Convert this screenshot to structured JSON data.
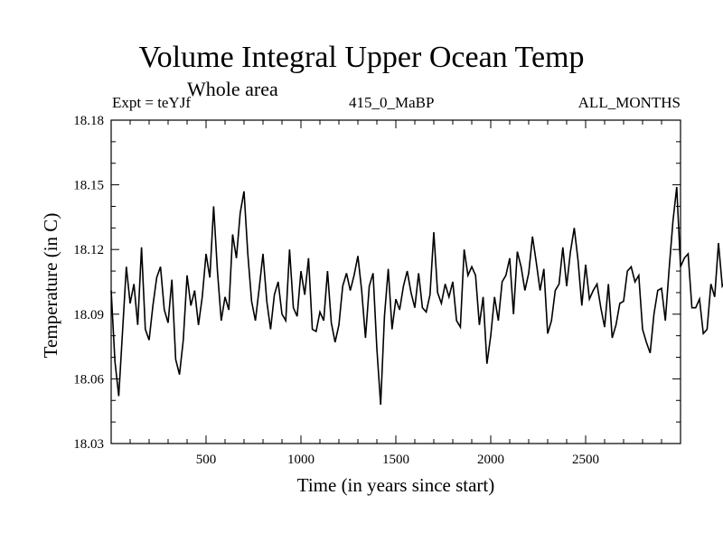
{
  "chart_data": {
    "type": "line",
    "title": "Volume Integral Upper Ocean Temp",
    "subtitle": "Whole area",
    "experiment_label": "Expt = teYJf",
    "period_label": "415_0_MaBP",
    "season_label": "ALL_MONTHS",
    "xlabel": "Time (in years since start)",
    "ylabel": "Temperature (in C)",
    "xlim": [
      0,
      3000
    ],
    "ylim": [
      18.03,
      18.18
    ],
    "x_ticks": [
      500,
      1000,
      1500,
      2000,
      2500
    ],
    "y_ticks": [
      18.03,
      18.06,
      18.09,
      18.12,
      18.15,
      18.18
    ],
    "y_tick_labels": [
      "18.03",
      "18.06",
      "18.09",
      "18.12",
      "18.15",
      "18.18"
    ],
    "grid": false,
    "series": [
      {
        "name": "Volume Integral Upper Ocean Temp",
        "color": "#000000",
        "x_start": 0,
        "x_step": 20,
        "values": [
          18.101,
          18.068,
          18.052,
          18.082,
          18.112,
          18.095,
          18.104,
          18.085,
          18.121,
          18.083,
          18.078,
          18.094,
          18.107,
          18.112,
          18.092,
          18.086,
          18.106,
          18.069,
          18.062,
          18.078,
          18.108,
          18.094,
          18.101,
          18.085,
          18.098,
          18.118,
          18.107,
          18.14,
          18.11,
          18.087,
          18.098,
          18.092,
          18.127,
          18.116,
          18.137,
          18.147,
          18.118,
          18.096,
          18.087,
          18.102,
          18.118,
          18.096,
          18.083,
          18.099,
          18.105,
          18.09,
          18.087,
          18.12,
          18.093,
          18.089,
          18.11,
          18.099,
          18.116,
          18.083,
          18.082,
          18.091,
          18.087,
          18.11,
          18.086,
          18.077,
          18.085,
          18.103,
          18.109,
          18.101,
          18.108,
          18.117,
          18.101,
          18.079,
          18.103,
          18.109,
          18.074,
          18.048,
          18.089,
          18.111,
          18.083,
          18.097,
          18.092,
          18.103,
          18.11,
          18.1,
          18.093,
          18.109,
          18.093,
          18.091,
          18.099,
          18.128,
          18.1,
          18.095,
          18.104,
          18.098,
          18.105,
          18.087,
          18.084,
          18.12,
          18.108,
          18.112,
          18.108,
          18.085,
          18.098,
          18.067,
          18.08,
          18.098,
          18.087,
          18.105,
          18.108,
          18.116,
          18.09,
          18.119,
          18.112,
          18.101,
          18.109,
          18.126,
          18.114,
          18.101,
          18.111,
          18.081,
          18.087,
          18.101,
          18.104,
          18.121,
          18.103,
          18.119,
          18.13,
          18.115,
          18.094,
          18.113,
          18.097,
          18.101,
          18.104,
          18.093,
          18.084,
          18.104,
          18.079,
          18.085,
          18.095,
          18.096,
          18.11,
          18.112,
          18.105,
          18.108,
          18.083,
          18.077,
          18.072,
          18.09,
          18.101,
          18.102,
          18.087,
          18.111,
          18.133,
          18.149,
          18.112,
          18.116,
          18.118,
          18.093,
          18.093,
          18.097,
          18.081,
          18.083,
          18.104,
          18.098,
          18.123,
          18.103,
          18.106,
          18.076,
          18.09,
          18.101,
          18.122,
          18.107,
          18.116,
          18.136,
          18.136,
          18.11,
          18.107,
          18.101,
          18.098,
          18.102,
          18.113,
          18.102,
          18.093,
          18.085,
          18.095,
          18.093,
          18.077,
          18.1,
          18.1,
          18.075,
          18.075,
          18.095,
          18.097,
          18.132,
          18.096,
          18.103,
          18.122,
          18.132,
          18.108,
          18.092,
          18.083,
          18.096,
          18.097,
          18.079,
          18.08,
          18.072,
          18.091,
          18.075,
          18.083,
          18.078,
          18.055,
          18.071,
          18.088,
          18.087,
          18.095,
          18.086,
          18.072,
          18.093,
          18.101,
          18.097,
          18.082,
          18.108,
          18.124,
          18.12,
          18.128,
          18.127,
          18.104,
          18.122,
          18.135,
          18.12,
          18.117,
          18.113,
          18.112,
          18.096,
          18.104,
          18.11,
          18.101,
          18.091,
          18.087,
          18.063,
          18.059,
          18.089,
          18.101,
          18.096,
          18.098,
          18.1,
          18.085,
          18.1,
          18.104,
          18.083,
          18.087,
          18.082,
          18.081,
          18.062,
          18.059,
          18.061,
          18.07,
          18.071,
          18.086,
          18.075,
          18.082,
          18.098,
          18.09,
          18.079,
          18.096,
          18.071,
          18.076,
          18.065,
          18.085,
          18.082,
          18.069,
          18.086,
          18.092,
          18.097,
          18.083,
          18.074,
          18.088,
          18.108,
          18.114,
          18.116,
          18.111,
          18.108,
          18.112,
          18.12,
          18.105,
          18.102,
          18.089,
          18.111,
          18.107,
          18.132,
          18.126,
          18.133,
          18.118,
          18.103,
          18.099,
          18.074,
          18.081,
          18.099,
          18.08,
          18.1,
          18.102,
          18.101,
          18.111,
          18.107,
          18.114,
          18.095,
          18.098,
          18.103,
          18.114,
          18.112,
          18.099,
          18.079,
          18.085,
          18.087,
          18.097,
          18.097,
          18.071,
          18.067,
          18.077,
          18.052,
          18.069,
          18.08,
          18.082,
          18.096,
          18.092,
          18.082,
          18.101,
          18.088,
          18.096,
          18.078,
          18.104,
          18.133,
          18.104,
          18.106,
          18.092,
          18.123,
          18.104,
          18.104,
          18.102,
          18.115,
          18.135,
          18.126,
          18.129,
          18.129,
          18.128,
          18.122,
          18.118,
          18.103,
          18.118,
          18.115,
          18.101,
          18.119,
          18.128,
          18.122,
          18.119,
          18.132,
          18.11,
          18.097,
          18.08,
          18.075,
          18.086,
          18.091,
          18.102,
          18.102,
          18.115,
          18.105,
          18.076,
          18.073,
          18.088,
          18.082,
          18.085,
          18.095,
          18.095,
          18.1,
          18.087,
          18.081,
          18.089,
          18.1,
          18.103,
          18.098,
          18.089,
          18.112,
          18.116,
          18.115,
          18.096,
          18.083,
          18.06,
          18.049,
          18.07,
          18.059,
          18.085,
          18.086,
          18.086,
          18.098,
          18.095,
          18.08,
          18.064,
          18.086,
          18.079,
          18.086,
          18.07,
          18.056,
          18.066,
          18.083,
          18.063,
          18.075,
          18.075,
          18.077,
          18.082,
          18.076,
          18.086,
          18.065
        ]
      }
    ]
  }
}
